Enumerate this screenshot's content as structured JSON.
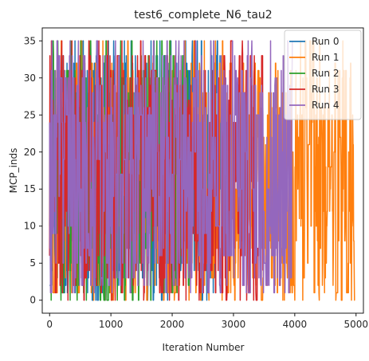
{
  "chart_data": {
    "type": "line",
    "title": "test6_complete_N6_tau2",
    "xlabel": "Iteration Number",
    "ylabel": "MCP_inds",
    "xlim": [
      -120,
      5120
    ],
    "ylim": [
      -1.75,
      36.75
    ],
    "xticks": [
      "0",
      "1000",
      "2000",
      "3000",
      "4000",
      "5000"
    ],
    "yticks": [
      "0",
      "5",
      "10",
      "15",
      "20",
      "25",
      "30",
      "35"
    ],
    "xtick_values": [
      0,
      1000,
      2000,
      3000,
      4000,
      5000
    ],
    "ytick_values": [
      0,
      5,
      10,
      15,
      20,
      25,
      30,
      35
    ],
    "grid": false,
    "legend_position": "top-right",
    "series": [
      {
        "name": "Run 0",
        "color": "#1f77b4",
        "length": 2800,
        "start_value": 2,
        "values_observed": [
          0,
          1,
          2,
          3,
          4,
          5,
          6,
          7,
          9,
          10,
          11,
          13,
          15,
          16,
          18,
          20,
          21,
          22,
          25,
          26,
          27,
          28,
          30,
          31,
          32,
          33,
          35
        ]
      },
      {
        "name": "Run 1",
        "color": "#ff7f0e",
        "length": 4980,
        "start_value": 21,
        "values_observed": [
          0,
          1,
          2,
          3,
          5,
          7,
          8,
          10,
          11,
          12,
          15,
          16,
          18,
          20,
          21,
          22,
          24,
          25,
          26,
          28,
          30,
          31,
          32,
          35
        ]
      },
      {
        "name": "Run 2",
        "color": "#2ca02c",
        "length": 2280,
        "start_value": 10,
        "values_observed": [
          0,
          1,
          2,
          3,
          5,
          6,
          7,
          9,
          10,
          12,
          14,
          16,
          19,
          20,
          22,
          23,
          25,
          26,
          28,
          30,
          31,
          33,
          35
        ]
      },
      {
        "name": "Run 3",
        "color": "#d62728",
        "length": 3480,
        "start_value": 6,
        "values_observed": [
          0,
          1,
          2,
          3,
          4,
          5,
          6,
          7,
          8,
          9,
          10,
          12,
          15,
          16,
          17,
          19,
          21,
          22,
          24,
          25,
          26,
          27,
          29,
          30,
          31,
          33,
          35
        ]
      },
      {
        "name": "Run 4",
        "color": "#9467bd",
        "length": 3960,
        "start_value": 24,
        "values_observed": [
          1,
          2,
          3,
          5,
          6,
          7,
          9,
          10,
          12,
          14,
          15,
          17,
          19,
          20,
          22,
          24,
          25,
          26,
          28,
          29,
          30,
          31,
          33,
          35
        ]
      }
    ]
  }
}
